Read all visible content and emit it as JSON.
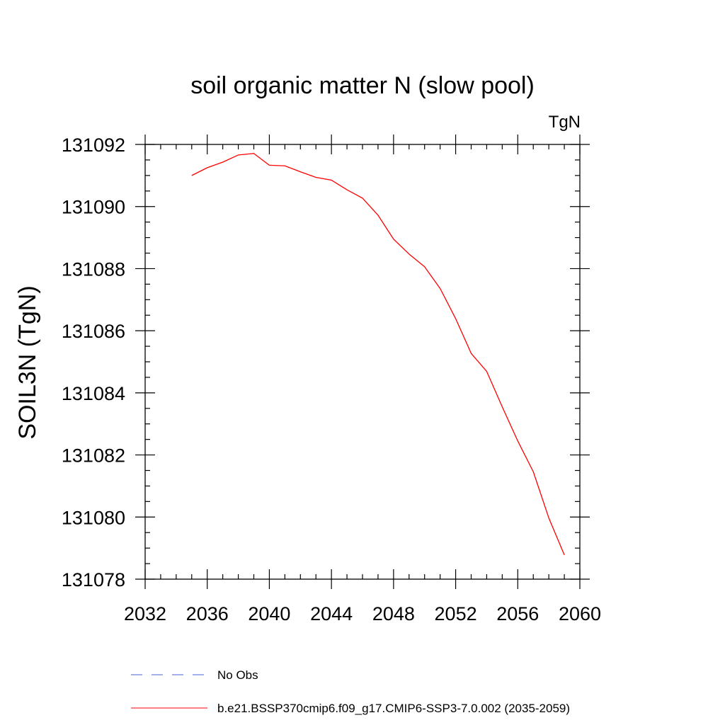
{
  "chart_data": {
    "type": "line",
    "title": "soil organic matter N (slow pool)",
    "units_label": "TgN",
    "ylabel": "SOIL3N  (TgN)",
    "xlabel": "",
    "xlim": [
      2032,
      2060
    ],
    "ylim": [
      131078,
      131092
    ],
    "x_ticks": [
      2032,
      2036,
      2040,
      2044,
      2048,
      2052,
      2056,
      2060
    ],
    "x_tick_labels": [
      "2032",
      "2036",
      "2040",
      "2044",
      "2048",
      "2052",
      "2056",
      "2060"
    ],
    "x_minor_step": 1,
    "y_ticks": [
      131078,
      131080,
      131082,
      131084,
      131086,
      131088,
      131090,
      131092
    ],
    "y_tick_labels": [
      "131078",
      "131080",
      "131082",
      "131084",
      "131086",
      "131088",
      "131090",
      "131092"
    ],
    "y_minor_step": 0.5,
    "grid": false,
    "legend_position": "bottom",
    "series": [
      {
        "name": "b.e21.BSSP370cmip6.f09_g17.CMIP6-SSP3-7.0.002 (2035-2059)",
        "color": "#ff0000",
        "dash": "solid",
        "x": [
          2035,
          2036,
          2037,
          2038,
          2039,
          2040,
          2041,
          2042,
          2043,
          2044,
          2045,
          2046,
          2047,
          2048,
          2049,
          2050,
          2051,
          2052,
          2053,
          2054,
          2055,
          2056,
          2057,
          2058,
          2059
        ],
        "y": [
          131091.0,
          131091.25,
          131091.43,
          131091.66,
          131091.71,
          131091.33,
          131091.31,
          131091.12,
          131090.94,
          131090.85,
          131090.54,
          131090.27,
          131089.72,
          131088.95,
          131088.47,
          131088.06,
          131087.36,
          131086.39,
          131085.27,
          131084.69,
          131083.55,
          131082.45,
          131081.46,
          131079.97,
          131078.78
        ]
      }
    ],
    "legend": [
      {
        "label": "No Obs",
        "color": "#4a5fd8",
        "dash": "dashed"
      },
      {
        "label": "b.e21.BSSP370cmip6.f09_g17.CMIP6-SSP3-7.0.002 (2035-2059)",
        "color": "#ff0000",
        "dash": "solid"
      }
    ]
  }
}
